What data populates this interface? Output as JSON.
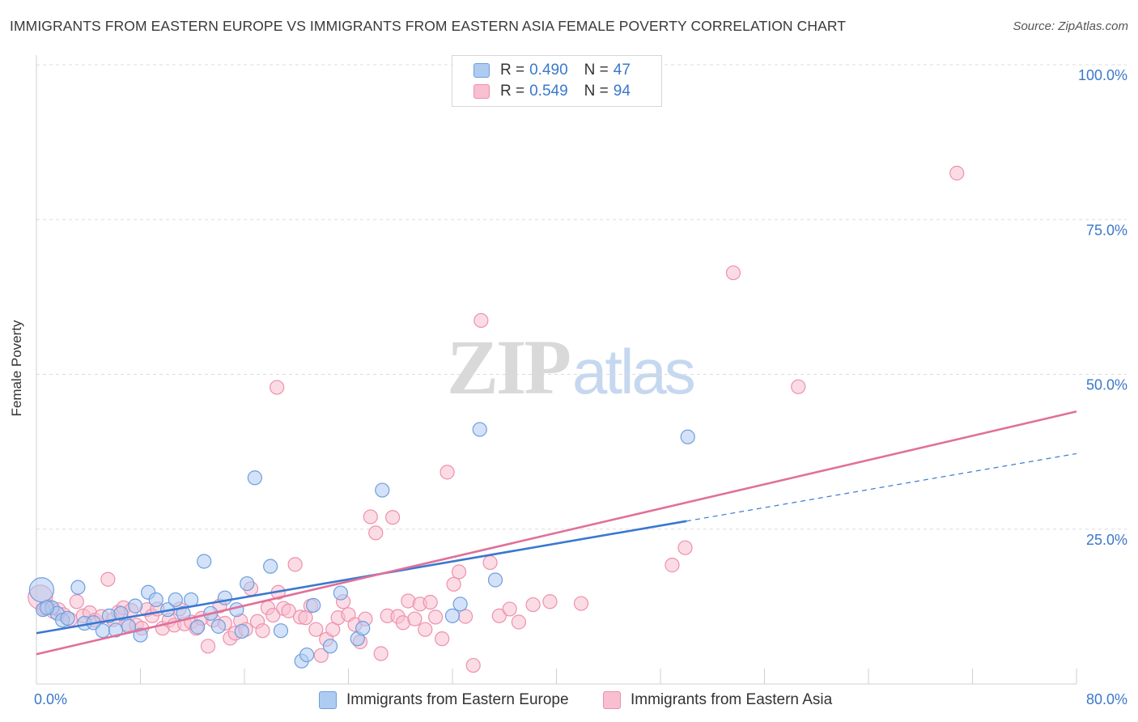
{
  "title": "IMMIGRANTS FROM EASTERN EUROPE VS IMMIGRANTS FROM EASTERN ASIA FEMALE POVERTY CORRELATION CHART",
  "source": "Source: ZipAtlas.com",
  "watermark": {
    "zip": "ZIP",
    "atlas": "atlas"
  },
  "legend_top": [
    {
      "r_label": "R =",
      "r_value": "0.490",
      "n_label": "N =",
      "n_value": "47"
    },
    {
      "r_label": "R =",
      "r_value": "0.549",
      "n_label": "N =",
      "n_value": "94"
    }
  ],
  "colors": {
    "blue_fill": "#aecbf2",
    "blue_stroke": "#6f9ede",
    "blue_line": "#3a78d0",
    "pink_fill": "#f8bfd0",
    "pink_stroke": "#ee90ad",
    "pink_line": "#e0709a",
    "grid": "#dcdcdc",
    "tick_text": "#3a78c9"
  },
  "chart_data": {
    "type": "scatter",
    "title": "IMMIGRANTS FROM EASTERN EUROPE VS IMMIGRANTS FROM EASTERN ASIA FEMALE POVERTY CORRELATION CHART",
    "xlabel": "",
    "ylabel": "Female Poverty",
    "xlim": [
      0,
      80
    ],
    "ylim": [
      0,
      100
    ],
    "x_tick_labels": [
      "0.0%",
      "80.0%"
    ],
    "y_ticks": [
      25,
      50,
      75,
      100
    ],
    "y_tick_labels": [
      "25.0%",
      "50.0%",
      "75.0%",
      "100.0%"
    ],
    "grid": true,
    "legend_position": "top-center",
    "series": [
      {
        "name": "Immigrants from Eastern Europe",
        "r": 0.49,
        "n": 47,
        "points": [
          [
            0.4,
            15.2
          ],
          [
            0.5,
            12.0
          ],
          [
            1.2,
            12.3
          ],
          [
            1.6,
            11.4
          ],
          [
            2.0,
            10.3
          ],
          [
            2.4,
            10.6
          ],
          [
            3.2,
            15.6
          ],
          [
            3.7,
            9.8
          ],
          [
            4.4,
            9.9
          ],
          [
            5.1,
            8.6
          ],
          [
            5.6,
            11.0
          ],
          [
            6.1,
            8.7
          ],
          [
            6.5,
            11.4
          ],
          [
            7.1,
            9.3
          ],
          [
            7.6,
            12.6
          ],
          [
            8.0,
            7.9
          ],
          [
            8.6,
            14.8
          ],
          [
            9.2,
            13.6
          ],
          [
            10.1,
            12.0
          ],
          [
            10.7,
            13.6
          ],
          [
            11.3,
            11.4
          ],
          [
            11.9,
            13.6
          ],
          [
            12.4,
            9.2
          ],
          [
            12.9,
            19.8
          ],
          [
            13.4,
            11.4
          ],
          [
            14.0,
            9.3
          ],
          [
            14.5,
            13.9
          ],
          [
            15.4,
            12.0
          ],
          [
            15.8,
            8.5
          ],
          [
            16.2,
            16.2
          ],
          [
            16.8,
            33.3
          ],
          [
            18.0,
            19.0
          ],
          [
            18.8,
            8.6
          ],
          [
            20.4,
            3.7
          ],
          [
            20.8,
            4.7
          ],
          [
            21.3,
            12.7
          ],
          [
            22.6,
            6.1
          ],
          [
            23.4,
            14.7
          ],
          [
            24.7,
            7.3
          ],
          [
            25.1,
            9.0
          ],
          [
            26.6,
            31.3
          ],
          [
            32.0,
            11.0
          ],
          [
            32.6,
            12.9
          ],
          [
            34.1,
            41.1
          ],
          [
            35.3,
            16.8
          ],
          [
            50.1,
            39.9
          ],
          [
            0.8,
            12.3
          ]
        ],
        "trend": {
          "solid": [
            [
              0,
              8.2
            ],
            [
              50,
              26.3
            ]
          ],
          "dashed": [
            [
              50,
              26.3
            ],
            [
              80,
              37.2
            ]
          ]
        }
      },
      {
        "name": "Immigrants from Eastern Asia",
        "r": 0.549,
        "n": 94,
        "points": [
          [
            0.3,
            14.0
          ],
          [
            0.6,
            12.2
          ],
          [
            0.9,
            12.5
          ],
          [
            1.3,
            11.7
          ],
          [
            1.7,
            12.0
          ],
          [
            2.1,
            11.2
          ],
          [
            2.6,
            10.4
          ],
          [
            3.1,
            13.3
          ],
          [
            3.6,
            11.0
          ],
          [
            4.1,
            11.5
          ],
          [
            4.5,
            10.3
          ],
          [
            5.0,
            10.9
          ],
          [
            5.5,
            16.9
          ],
          [
            5.9,
            10.4
          ],
          [
            6.3,
            11.6
          ],
          [
            6.7,
            12.3
          ],
          [
            7.0,
            9.6
          ],
          [
            7.3,
            11.9
          ],
          [
            7.7,
            9.5
          ],
          [
            8.1,
            9.0
          ],
          [
            8.5,
            12.0
          ],
          [
            8.9,
            11.0
          ],
          [
            9.3,
            12.1
          ],
          [
            9.7,
            9.0
          ],
          [
            10.2,
            10.3
          ],
          [
            10.6,
            9.5
          ],
          [
            11.0,
            12.1
          ],
          [
            11.4,
            9.7
          ],
          [
            11.9,
            10.0
          ],
          [
            12.3,
            9.0
          ],
          [
            12.7,
            10.6
          ],
          [
            13.2,
            6.1
          ],
          [
            13.6,
            10.3
          ],
          [
            14.1,
            12.6
          ],
          [
            14.5,
            9.8
          ],
          [
            14.9,
            7.4
          ],
          [
            15.3,
            8.2
          ],
          [
            15.7,
            10.2
          ],
          [
            16.1,
            8.8
          ],
          [
            16.5,
            15.4
          ],
          [
            17.0,
            10.1
          ],
          [
            17.4,
            8.6
          ],
          [
            17.8,
            12.3
          ],
          [
            18.2,
            11.1
          ],
          [
            18.6,
            14.8
          ],
          [
            19.0,
            12.2
          ],
          [
            19.4,
            11.8
          ],
          [
            19.9,
            19.3
          ],
          [
            20.3,
            10.8
          ],
          [
            20.7,
            10.7
          ],
          [
            21.1,
            12.6
          ],
          [
            21.5,
            8.8
          ],
          [
            21.9,
            4.6
          ],
          [
            22.3,
            7.2
          ],
          [
            22.8,
            8.8
          ],
          [
            23.2,
            10.7
          ],
          [
            23.6,
            13.3
          ],
          [
            24.0,
            11.2
          ],
          [
            24.5,
            9.6
          ],
          [
            24.9,
            6.8
          ],
          [
            25.3,
            10.5
          ],
          [
            25.7,
            27.0
          ],
          [
            26.1,
            24.4
          ],
          [
            26.5,
            4.9
          ],
          [
            27.0,
            11.0
          ],
          [
            27.4,
            26.9
          ],
          [
            27.8,
            10.9
          ],
          [
            28.2,
            9.9
          ],
          [
            28.6,
            13.4
          ],
          [
            29.1,
            10.5
          ],
          [
            29.5,
            12.9
          ],
          [
            29.9,
            8.8
          ],
          [
            30.3,
            13.2
          ],
          [
            30.7,
            10.8
          ],
          [
            31.2,
            7.3
          ],
          [
            31.6,
            34.2
          ],
          [
            32.1,
            16.1
          ],
          [
            32.5,
            18.1
          ],
          [
            33.0,
            10.9
          ],
          [
            33.6,
            3.0
          ],
          [
            34.2,
            58.7
          ],
          [
            34.9,
            19.6
          ],
          [
            35.6,
            11.0
          ],
          [
            36.4,
            12.1
          ],
          [
            37.1,
            10.0
          ],
          [
            38.2,
            12.8
          ],
          [
            39.5,
            13.3
          ],
          [
            41.9,
            13.0
          ],
          [
            48.9,
            19.2
          ],
          [
            49.9,
            22.0
          ],
          [
            53.6,
            66.4
          ],
          [
            58.6,
            48.0
          ],
          [
            70.8,
            82.5
          ],
          [
            18.5,
            47.9
          ]
        ],
        "trend": {
          "solid": [
            [
              0,
              4.8
            ],
            [
              80,
              44.0
            ]
          ]
        }
      }
    ]
  },
  "legend_bottom": [
    "Immigrants from Eastern Europe",
    "Immigrants from Eastern Asia"
  ]
}
